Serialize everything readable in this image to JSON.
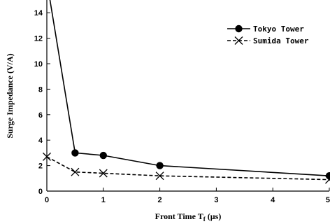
{
  "chart_data": {
    "type": "line",
    "xlabel": "Front Time  T",
    "xlabel_sub": "f",
    "xlabel_unit": " (µs)",
    "ylabel": "Surge Impedance (V/A)",
    "xlim": [
      0,
      5
    ],
    "ylim": [
      0,
      15
    ],
    "xticks": [
      "0",
      "1",
      "2",
      "3",
      "4",
      "5"
    ],
    "yticks": [
      "0",
      "2",
      "4",
      "6",
      "8",
      "10",
      "12",
      "14"
    ],
    "grid": false,
    "legend_position": "top-right",
    "series": [
      {
        "name": "Tokyo Tower",
        "marker": "filled-circle",
        "line_style": "solid",
        "color": "#000000",
        "points": [
          [
            0,
            16.5
          ],
          [
            0.5,
            3.0
          ],
          [
            1,
            2.8
          ],
          [
            2,
            2.0
          ],
          [
            5,
            1.2
          ]
        ],
        "markers_at": [
          [
            0.5,
            3.0
          ],
          [
            1,
            2.8
          ],
          [
            2,
            2.0
          ],
          [
            5,
            1.2
          ]
        ]
      },
      {
        "name": "Sumida Tower",
        "marker": "x",
        "line_style": "dashed",
        "color": "#000000",
        "points": [
          [
            0,
            2.7
          ],
          [
            0.5,
            1.5
          ],
          [
            1,
            1.4
          ],
          [
            2,
            1.2
          ],
          [
            5,
            0.9
          ]
        ],
        "markers_at": [
          [
            0,
            2.7
          ],
          [
            0.5,
            1.5
          ],
          [
            1,
            1.4
          ],
          [
            2,
            1.2
          ],
          [
            5,
            0.9
          ]
        ]
      }
    ]
  }
}
